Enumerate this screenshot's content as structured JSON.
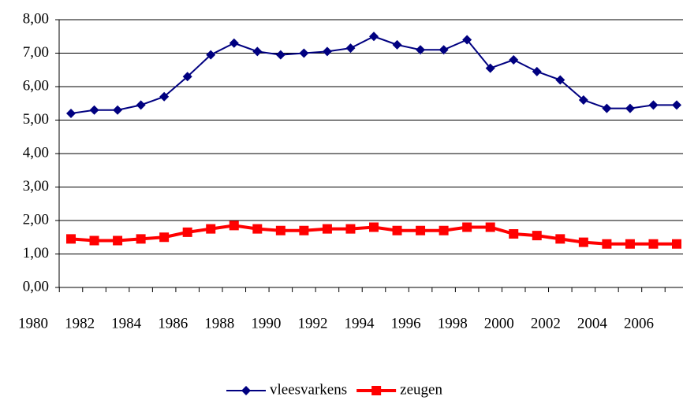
{
  "chart_data": {
    "type": "line",
    "categories": [
      "1980",
      null,
      "1982",
      null,
      "1984",
      null,
      "1986",
      null,
      "1988",
      null,
      "1990",
      null,
      "1992",
      null,
      "1994",
      null,
      "1996",
      null,
      "1998",
      null,
      "2000",
      null,
      "2002",
      null,
      "2004",
      null,
      "2006"
    ],
    "series": [
      {
        "name": "vleesvarkens",
        "color": "#000080",
        "marker": "diamond",
        "values": [
          5.2,
          5.3,
          5.3,
          5.45,
          5.7,
          6.3,
          6.95,
          7.3,
          7.05,
          6.95,
          7.0,
          7.05,
          7.15,
          7.5,
          7.25,
          7.1,
          7.1,
          7.4,
          6.55,
          6.8,
          6.45,
          6.2,
          5.6,
          5.35,
          5.35,
          5.45,
          5.45
        ]
      },
      {
        "name": "zeugen",
        "color": "#ff0000",
        "marker": "square",
        "values": [
          1.45,
          1.4,
          1.4,
          1.45,
          1.5,
          1.65,
          1.75,
          1.85,
          1.75,
          1.7,
          1.7,
          1.75,
          1.75,
          1.8,
          1.7,
          1.7,
          1.7,
          1.8,
          1.8,
          1.6,
          1.55,
          1.45,
          1.35,
          1.3,
          1.3,
          1.3,
          1.3
        ]
      }
    ],
    "ylim": [
      0,
      8
    ],
    "yticks": [
      {
        "value": 0,
        "label": "0,00"
      },
      {
        "value": 1,
        "label": "1,00"
      },
      {
        "value": 2,
        "label": "2,00"
      },
      {
        "value": 3,
        "label": "3,00"
      },
      {
        "value": 4,
        "label": "4,00"
      },
      {
        "value": 5,
        "label": "5,00"
      },
      {
        "value": 6,
        "label": "6,00"
      },
      {
        "value": 7,
        "label": "7,00"
      },
      {
        "value": 8,
        "label": "8,00"
      }
    ],
    "grid": true,
    "legend": "bottom"
  }
}
